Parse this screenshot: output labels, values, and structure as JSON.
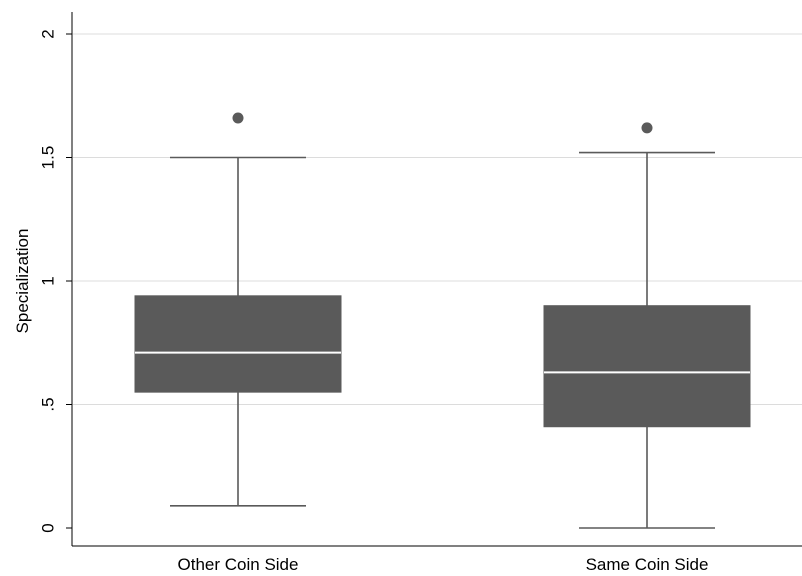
{
  "chart_data": {
    "type": "box",
    "title": "",
    "xlabel": "",
    "ylabel": "Specialization",
    "ylim": [
      0,
      2
    ],
    "yticks": [
      {
        "value": 0,
        "label": "0"
      },
      {
        "value": 0.5,
        "label": ".5"
      },
      {
        "value": 1,
        "label": "1"
      },
      {
        "value": 1.5,
        "label": "1.5"
      },
      {
        "value": 2,
        "label": "2"
      }
    ],
    "grid": true,
    "categories": [
      "Other Coin Side",
      "Same Coin Side"
    ],
    "boxes": [
      {
        "category": "Other Coin Side",
        "whisker_low": 0.09,
        "q1": 0.55,
        "median": 0.71,
        "q3": 0.94,
        "whisker_high": 1.5,
        "outliers": [
          1.66
        ]
      },
      {
        "category": "Same Coin Side",
        "whisker_low": 0.0,
        "q1": 0.41,
        "median": 0.63,
        "q3": 0.9,
        "whisker_high": 1.52,
        "outliers": [
          1.62
        ]
      }
    ],
    "colors": {
      "box": "#5a5a5a",
      "median": "#ffffff",
      "grid": "#dcdcdc",
      "axis": "#000000"
    }
  }
}
